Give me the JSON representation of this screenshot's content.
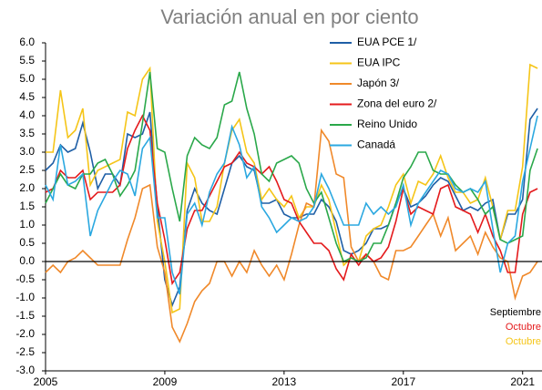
{
  "chart_data": {
    "type": "line",
    "subtitle": "Variación anual en por ciento",
    "x": [
      2005,
      2005.25,
      2005.5,
      2005.75,
      2006,
      2006.25,
      2006.5,
      2006.75,
      2007,
      2007.25,
      2007.5,
      2007.75,
      2008,
      2008.25,
      2008.5,
      2008.75,
      2009,
      2009.25,
      2009.5,
      2009.75,
      2010,
      2010.25,
      2010.5,
      2010.75,
      2011,
      2011.25,
      2011.5,
      2011.75,
      2012,
      2012.25,
      2012.5,
      2012.75,
      2013,
      2013.25,
      2013.5,
      2013.75,
      2014,
      2014.25,
      2014.5,
      2014.75,
      2015,
      2015.25,
      2015.5,
      2015.75,
      2016,
      2016.25,
      2016.5,
      2016.75,
      2017,
      2017.25,
      2017.5,
      2017.75,
      2018,
      2018.25,
      2018.5,
      2018.75,
      2019,
      2019.25,
      2019.5,
      2019.75,
      2020,
      2020.25,
      2020.5,
      2020.75,
      2021,
      2021.25,
      2021.5
    ],
    "series": [
      {
        "name": "EUA PCE 1/",
        "color": "#1f5fa6",
        "values": [
          2.5,
          2.7,
          3.2,
          3.0,
          3.1,
          3.8,
          3.0,
          2.0,
          2.4,
          2.4,
          2.1,
          3.5,
          3.4,
          3.5,
          4.1,
          1.5,
          -0.5,
          -1.2,
          -0.7,
          1.4,
          2.0,
          1.6,
          1.4,
          1.3,
          2.0,
          2.7,
          2.9,
          2.6,
          2.5,
          1.6,
          1.6,
          1.7,
          1.3,
          1.2,
          1.2,
          1.3,
          1.3,
          1.7,
          1.5,
          1.1,
          0.3,
          0.2,
          0.3,
          0.5,
          0.9,
          0.9,
          1.0,
          1.6,
          2.0,
          1.5,
          1.6,
          1.8,
          2.1,
          2.3,
          2.2,
          1.8,
          1.4,
          1.5,
          1.4,
          1.6,
          1.7,
          0.6,
          1.3,
          1.3,
          1.7,
          3.9,
          4.2
        ]
      },
      {
        "name": "EUA IPC",
        "color": "#f5c518",
        "values": [
          3.0,
          3.0,
          4.7,
          3.4,
          3.6,
          4.2,
          2.1,
          2.5,
          2.6,
          2.7,
          2.8,
          4.1,
          4.0,
          5.0,
          5.3,
          1.1,
          0.0,
          -1.4,
          -1.3,
          2.7,
          2.3,
          1.1,
          1.1,
          1.5,
          2.7,
          3.6,
          3.9,
          3.0,
          2.7,
          1.7,
          2.0,
          1.7,
          1.5,
          1.8,
          1.2,
          1.5,
          1.5,
          2.1,
          1.7,
          0.8,
          -0.1,
          0.1,
          0.0,
          0.7,
          0.9,
          1.0,
          1.5,
          2.1,
          2.4,
          1.6,
          2.2,
          2.1,
          2.4,
          2.9,
          2.3,
          1.9,
          1.9,
          1.6,
          1.7,
          2.3,
          1.5,
          0.6,
          1.4,
          1.4,
          2.6,
          5.4,
          5.3
        ]
      },
      {
        "name": "Japón 3/",
        "color": "#f0892a",
        "values": [
          -0.3,
          -0.1,
          -0.3,
          0.0,
          0.1,
          0.3,
          0.1,
          -0.1,
          -0.1,
          -0.1,
          -0.1,
          0.6,
          1.2,
          2.0,
          2.1,
          0.4,
          -0.3,
          -1.8,
          -2.2,
          -1.7,
          -1.1,
          -0.8,
          -0.6,
          0.0,
          0.0,
          -0.4,
          0.0,
          -0.3,
          0.3,
          -0.1,
          -0.4,
          -0.1,
          -0.5,
          0.2,
          1.0,
          1.6,
          1.5,
          3.6,
          3.3,
          2.4,
          2.3,
          0.4,
          0.0,
          0.2,
          0.0,
          -0.4,
          -0.5,
          0.3,
          0.3,
          0.4,
          0.7,
          1.0,
          1.3,
          0.7,
          1.2,
          0.3,
          0.5,
          0.7,
          0.2,
          0.8,
          0.4,
          0.1,
          0.0,
          -1.0,
          -0.4,
          -0.3,
          0.0
        ]
      },
      {
        "name": "Zona del euro 2/",
        "color": "#e41a1c",
        "values": [
          1.9,
          2.0,
          2.5,
          2.3,
          2.3,
          2.5,
          1.7,
          1.9,
          1.9,
          1.9,
          2.1,
          3.1,
          3.6,
          4.0,
          3.6,
          1.6,
          0.6,
          -0.6,
          -0.3,
          0.9,
          1.4,
          1.4,
          1.8,
          2.2,
          2.6,
          2.7,
          3.0,
          2.7,
          2.6,
          2.4,
          2.6,
          2.2,
          1.7,
          1.6,
          1.1,
          0.8,
          0.5,
          0.5,
          0.3,
          -0.2,
          -0.5,
          0.2,
          -0.1,
          0.2,
          0.0,
          0.1,
          0.4,
          1.1,
          2.0,
          1.3,
          1.5,
          1.4,
          1.3,
          2.0,
          2.1,
          1.5,
          1.4,
          1.3,
          0.8,
          1.3,
          0.7,
          0.3,
          -0.3,
          -0.3,
          1.3,
          1.9,
          2.0
        ]
      },
      {
        "name": "Reino Unido",
        "color": "#2aa84a",
        "values": [
          1.6,
          2.0,
          2.4,
          2.1,
          2.0,
          2.4,
          2.4,
          2.7,
          2.8,
          2.4,
          1.8,
          2.1,
          2.5,
          3.8,
          5.2,
          3.1,
          3.0,
          2.0,
          1.1,
          2.9,
          3.4,
          3.2,
          3.1,
          3.4,
          4.3,
          4.4,
          5.2,
          4.2,
          3.5,
          2.4,
          2.2,
          2.7,
          2.8,
          2.9,
          2.7,
          2.0,
          1.6,
          1.9,
          1.2,
          0.5,
          0.0,
          0.1,
          0.0,
          0.1,
          0.5,
          0.5,
          1.0,
          1.6,
          2.3,
          2.6,
          3.0,
          3.0,
          2.5,
          2.4,
          2.4,
          2.1,
          1.9,
          2.0,
          1.7,
          1.3,
          1.5,
          0.6,
          0.5,
          0.6,
          0.7,
          2.5,
          3.1
        ]
      },
      {
        "name": "Canadá",
        "color": "#2ba8e0",
        "values": [
          2.1,
          1.7,
          3.2,
          2.1,
          2.2,
          2.4,
          0.7,
          1.4,
          1.8,
          2.2,
          2.5,
          2.4,
          1.8,
          3.1,
          3.4,
          1.2,
          1.2,
          -0.3,
          -0.9,
          1.3,
          1.6,
          1.0,
          1.9,
          2.4,
          2.7,
          3.7,
          3.2,
          2.3,
          2.6,
          1.5,
          1.2,
          0.8,
          1.0,
          1.2,
          1.1,
          1.2,
          1.5,
          2.4,
          2.0,
          1.5,
          1.0,
          1.0,
          1.0,
          1.6,
          1.3,
          1.5,
          1.3,
          1.5,
          2.1,
          1.0,
          1.6,
          1.9,
          2.2,
          2.5,
          2.4,
          2.0,
          1.9,
          2.0,
          1.9,
          2.2,
          0.9,
          -0.3,
          0.5,
          0.7,
          2.2,
          3.1,
          4.0
        ]
      }
    ],
    "xlim": [
      2005,
      2021.65
    ],
    "xticks": [
      2005,
      2009,
      2013,
      2017,
      2021
    ],
    "ylim": [
      -3,
      6
    ],
    "yticks": [
      {
        "value": -3,
        "label": "-3.0"
      },
      -2.5,
      {
        "value": -2,
        "label": "-2.0"
      },
      -1.5,
      {
        "value": -1,
        "label": "-1.0"
      },
      -0.5,
      {
        "value": 0,
        "label": "0.0"
      },
      0.5,
      {
        "value": 1,
        "label": "1.0"
      },
      1.5,
      {
        "value": 2,
        "label": "2.0"
      },
      2.5,
      {
        "value": 3,
        "label": "3.0"
      },
      3.5,
      {
        "value": 4,
        "label": "4.0"
      },
      4.5,
      {
        "value": 5,
        "label": "5.0"
      },
      5.5,
      {
        "value": 6,
        "label": "6.0"
      }
    ],
    "zero_line": true,
    "annotations": [
      {
        "text": "Septiembre",
        "color": "#000000"
      },
      {
        "text": "Octubre",
        "color": "#e41a1c"
      },
      {
        "text": "Octubre",
        "color": "#f5c518"
      }
    ]
  }
}
